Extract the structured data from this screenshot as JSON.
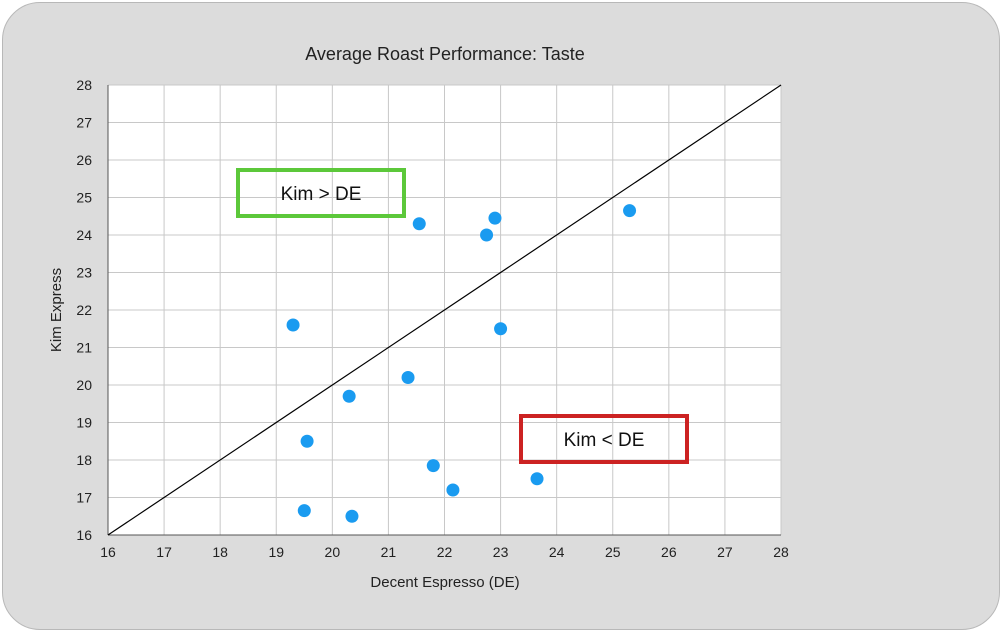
{
  "chart_data": {
    "type": "scatter",
    "title": "Average Roast Performance: Taste",
    "xlabel": "Decent Espresso (DE)",
    "ylabel": "Kim Express",
    "xlim": [
      16,
      28
    ],
    "ylim": [
      16,
      28
    ],
    "xticks": [
      16,
      17,
      18,
      19,
      20,
      21,
      22,
      23,
      24,
      25,
      26,
      27,
      28
    ],
    "yticks": [
      16,
      17,
      18,
      19,
      20,
      21,
      22,
      23,
      24,
      25,
      26,
      27,
      28
    ],
    "grid": true,
    "reference_line": {
      "from": [
        16,
        16
      ],
      "to": [
        28,
        28
      ]
    },
    "point_color": "#1a9bf0",
    "points": [
      {
        "x": 19.3,
        "y": 21.6
      },
      {
        "x": 19.55,
        "y": 18.5
      },
      {
        "x": 19.5,
        "y": 16.65
      },
      {
        "x": 20.3,
        "y": 19.7
      },
      {
        "x": 20.35,
        "y": 16.5
      },
      {
        "x": 21.35,
        "y": 20.2
      },
      {
        "x": 21.55,
        "y": 24.3
      },
      {
        "x": 21.8,
        "y": 17.85
      },
      {
        "x": 22.15,
        "y": 17.2
      },
      {
        "x": 22.75,
        "y": 24.0
      },
      {
        "x": 22.9,
        "y": 24.45
      },
      {
        "x": 23.0,
        "y": 21.5
      },
      {
        "x": 23.65,
        "y": 17.5
      },
      {
        "x": 25.3,
        "y": 24.65
      }
    ],
    "annotations": [
      {
        "text": "Kim > DE",
        "border_color": "#5cc83a"
      },
      {
        "text": "Kim < DE",
        "border_color": "#cc2222"
      }
    ]
  }
}
